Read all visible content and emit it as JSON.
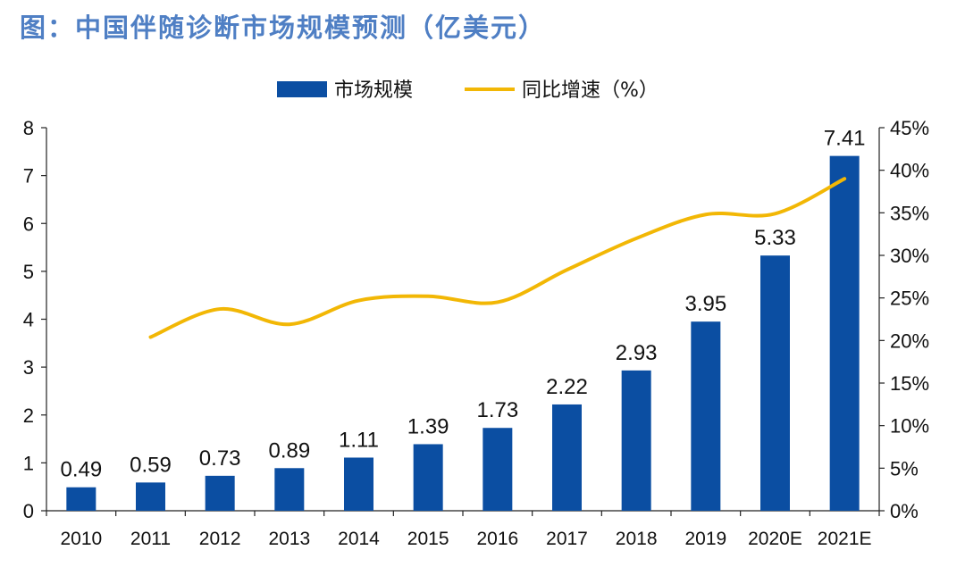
{
  "figure": {
    "title": "图：中国伴随诊断市场规模预测（亿美元）"
  },
  "chart_data": {
    "type": "bar",
    "categories": [
      "2010",
      "2011",
      "2012",
      "2013",
      "2014",
      "2015",
      "2016",
      "2017",
      "2018",
      "2019",
      "2020E",
      "2021E"
    ],
    "series": [
      {
        "name": "市场规模",
        "type": "bar",
        "axis": "left",
        "color": "#0b4ea2",
        "values": [
          0.49,
          0.59,
          0.73,
          0.89,
          1.11,
          1.39,
          1.73,
          2.22,
          2.93,
          3.95,
          5.33,
          7.41
        ],
        "labels": [
          "0.49",
          "0.59",
          "0.73",
          "0.89",
          "1.11",
          "1.39",
          "1.73",
          "2.22",
          "2.93",
          "3.95",
          "5.33",
          "7.41"
        ]
      },
      {
        "name": "同比增速（%）",
        "type": "line",
        "axis": "right",
        "color": "#f2b705",
        "values": [
          null,
          20.4,
          23.7,
          21.9,
          24.7,
          25.2,
          24.5,
          28.3,
          32.0,
          34.8,
          34.9,
          39.0
        ]
      }
    ],
    "y_left": {
      "min": 0,
      "max": 8,
      "ticks": [
        "0",
        "1",
        "2",
        "3",
        "4",
        "5",
        "6",
        "7",
        "8"
      ]
    },
    "y_right": {
      "min": 0,
      "max": 45,
      "ticks": [
        "0%",
        "5%",
        "10%",
        "15%",
        "20%",
        "25%",
        "30%",
        "35%",
        "40%",
        "45%"
      ]
    },
    "legend_position": "top-center",
    "grid": false
  }
}
